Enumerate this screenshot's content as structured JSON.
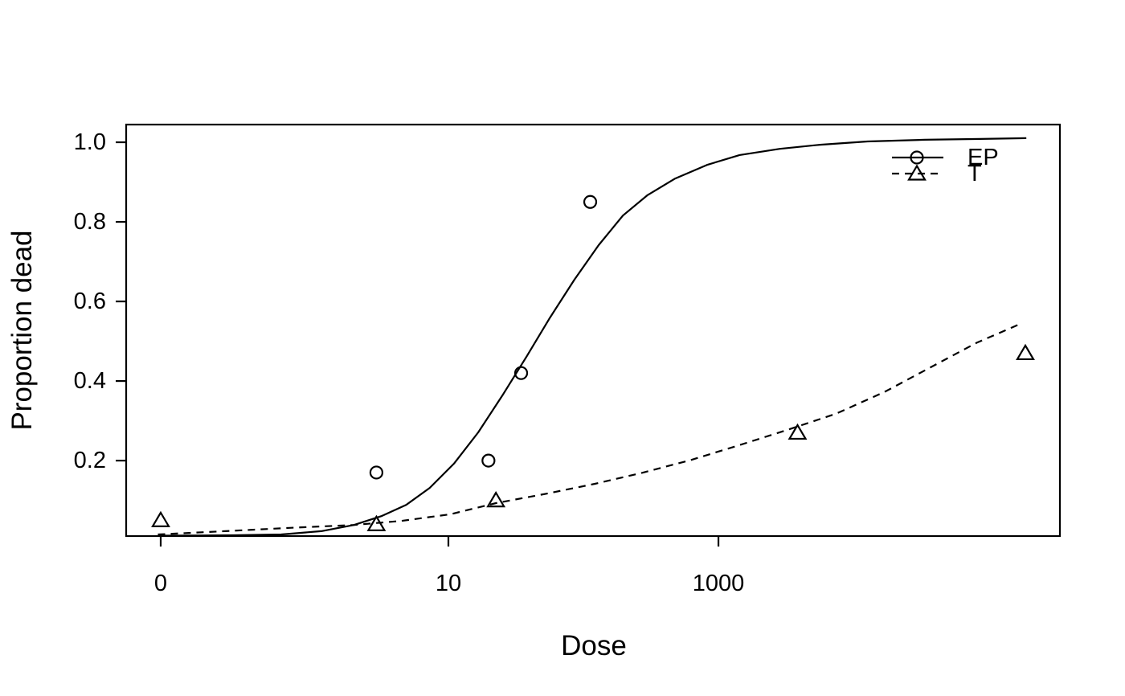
{
  "figure": {
    "background": "#ffffff",
    "stroke_color": "#000000"
  },
  "xlabel": "Dose",
  "ylabel": "Proportion dead",
  "legend": {
    "position": "top-right-inside",
    "items": [
      {
        "label": "EP",
        "marker": "circle-icon",
        "line_style": "solid"
      },
      {
        "label": "T",
        "marker": "triangle-icon",
        "line_style": "dashed"
      }
    ]
  },
  "chart_data": {
    "type": "scatter",
    "description": "Dose-response curves: observed proportions (open markers) with fitted sigmoid curves for two treatments EP and T",
    "grid": false,
    "x_axis": {
      "label": "Dose",
      "scale": "nonlinear (log-like, dose 0 shown at left)",
      "ticks": [
        {
          "label": "0",
          "frac": 0.037
        },
        {
          "label": "10",
          "frac": 0.3451
        },
        {
          "label": "1000",
          "frac": 0.6343
        }
      ]
    },
    "y_axis": {
      "label": "Proportion dead",
      "range_shown": [
        0.0,
        1.04
      ],
      "frac_at_value_1": 0.043,
      "frac_per_unit": 0.967,
      "ticks": [
        {
          "label": "1.0",
          "value": 1.0
        },
        {
          "label": "0.8",
          "value": 0.8
        },
        {
          "label": "0.6",
          "value": 0.6
        },
        {
          "label": "0.4",
          "value": 0.4
        },
        {
          "label": "0.2",
          "value": 0.2
        }
      ]
    },
    "series": [
      {
        "name": "EP",
        "marker": "circle",
        "line_style": "solid",
        "points": [
          {
            "xf": 0.268,
            "y": 0.17
          },
          {
            "xf": 0.388,
            "y": 0.2
          },
          {
            "xf": 0.423,
            "y": 0.42
          },
          {
            "xf": 0.497,
            "y": 0.85
          }
        ],
        "fit_curve": [
          [
            0.037,
            0.999
          ],
          [
            0.115,
            0.998
          ],
          [
            0.166,
            0.996
          ],
          [
            0.209,
            0.988
          ],
          [
            0.244,
            0.973
          ],
          [
            0.274,
            0.951
          ],
          [
            0.3,
            0.924
          ],
          [
            0.325,
            0.883
          ],
          [
            0.351,
            0.824
          ],
          [
            0.377,
            0.748
          ],
          [
            0.403,
            0.658
          ],
          [
            0.429,
            0.563
          ],
          [
            0.454,
            0.469
          ],
          [
            0.48,
            0.377
          ],
          [
            0.506,
            0.293
          ],
          [
            0.532,
            0.221
          ],
          [
            0.558,
            0.172
          ],
          [
            0.588,
            0.131
          ],
          [
            0.622,
            0.098
          ],
          [
            0.657,
            0.074
          ],
          [
            0.7,
            0.059
          ],
          [
            0.743,
            0.049
          ],
          [
            0.794,
            0.041
          ],
          [
            0.855,
            0.037
          ],
          [
            0.915,
            0.035
          ],
          [
            0.964,
            0.033
          ]
        ]
      },
      {
        "name": "T",
        "marker": "triangle",
        "line_style": "dashed",
        "points": [
          {
            "xf": 0.037,
            "y": 0.05
          },
          {
            "xf": 0.268,
            "y": 0.04
          },
          {
            "xf": 0.396,
            "y": 0.1
          },
          {
            "xf": 0.719,
            "y": 0.27
          },
          {
            "xf": 0.963,
            "y": 0.47
          }
        ],
        "fit_curve": [
          [
            0.034,
            0.996
          ],
          [
            0.106,
            0.988
          ],
          [
            0.175,
            0.98
          ],
          [
            0.244,
            0.973
          ],
          [
            0.295,
            0.963
          ],
          [
            0.347,
            0.947
          ],
          [
            0.396,
            0.92
          ],
          [
            0.45,
            0.897
          ],
          [
            0.502,
            0.873
          ],
          [
            0.553,
            0.846
          ],
          [
            0.605,
            0.815
          ],
          [
            0.657,
            0.779
          ],
          [
            0.708,
            0.742
          ],
          [
            0.76,
            0.703
          ],
          [
            0.812,
            0.65
          ],
          [
            0.863,
            0.588
          ],
          [
            0.911,
            0.53
          ],
          [
            0.958,
            0.484
          ]
        ]
      }
    ]
  }
}
